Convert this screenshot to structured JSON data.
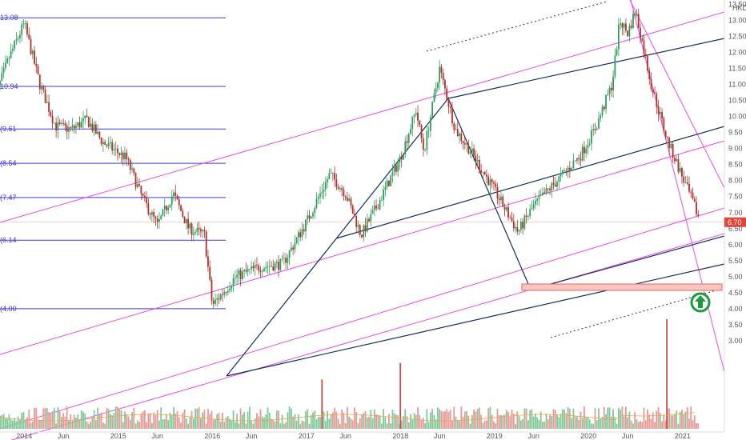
{
  "chart_data": {
    "type": "candlestick",
    "currency_label": "HKD",
    "y_ticks": [
      "13.50",
      "13.00",
      "12.50",
      "12.00",
      "11.50",
      "11.00",
      "10.50",
      "10.00",
      "9.50",
      "9.00",
      "8.50",
      "8.00",
      "7.50",
      "7.00",
      "6.50",
      "6.00",
      "5.50",
      "5.00",
      "4.50",
      "4.00",
      "3.50",
      "3.00"
    ],
    "x_ticks": [
      "2014",
      "Jun",
      "2015",
      "Jun",
      "2016",
      "Jun",
      "2017",
      "Jun",
      "2018",
      "Jun",
      "2019",
      "Jun",
      "2020",
      "Jun",
      "2021"
    ],
    "last_price_label": "6.70",
    "last_price": 6.7,
    "fib_levels": [
      {
        "label": "13.08",
        "value": 13.08
      },
      {
        "label": "10.94",
        "value": 10.94
      },
      {
        "label": "(9.61",
        "value": 9.61
      },
      {
        "label": "(8.54",
        "value": 8.54
      },
      {
        "label": "(7.47",
        "value": 7.47
      },
      {
        "label": "(6.14",
        "value": 6.14
      },
      {
        "label": "(4.00",
        "value": 4.0
      }
    ],
    "price_path": [
      [
        "2013-09",
        10.4
      ],
      [
        "2013-11",
        11.8
      ],
      [
        "2014-01",
        12.9
      ],
      [
        "2014-03",
        11.0
      ],
      [
        "2014-05",
        9.7
      ],
      [
        "2014-07",
        9.6
      ],
      [
        "2014-09",
        9.9
      ],
      [
        "2014-11",
        9.2
      ],
      [
        "2015-02",
        8.7
      ],
      [
        "2015-04",
        7.5
      ],
      [
        "2015-06",
        6.6
      ],
      [
        "2015-08",
        7.6
      ],
      [
        "2015-10",
        6.5
      ],
      [
        "2015-12",
        6.3
      ],
      [
        "2016-01",
        4.1
      ],
      [
        "2016-04",
        5.0
      ],
      [
        "2016-07",
        5.3
      ],
      [
        "2016-10",
        5.4
      ],
      [
        "2017-01",
        6.7
      ],
      [
        "2017-04",
        8.2
      ],
      [
        "2017-06",
        7.6
      ],
      [
        "2017-08",
        6.3
      ],
      [
        "2017-10",
        7.2
      ],
      [
        "2018-01",
        8.7
      ],
      [
        "2018-03",
        10.2
      ],
      [
        "2018-04",
        8.9
      ],
      [
        "2018-06",
        11.5
      ],
      [
        "2018-08",
        9.6
      ],
      [
        "2018-10",
        8.9
      ],
      [
        "2019-01",
        7.7
      ],
      [
        "2019-04",
        6.4
      ],
      [
        "2019-06",
        7.2
      ],
      [
        "2019-09",
        8.0
      ],
      [
        "2019-12",
        8.8
      ],
      [
        "2020-02",
        9.7
      ],
      [
        "2020-04",
        11.0
      ],
      [
        "2020-05",
        13.0
      ],
      [
        "2020-06",
        12.6
      ],
      [
        "2020-07",
        13.3
      ],
      [
        "2020-09",
        11.0
      ],
      [
        "2020-11",
        9.3
      ],
      [
        "2021-01",
        8.1
      ],
      [
        "2021-03",
        6.9
      ]
    ],
    "volume_spikes": [
      {
        "date": "2017-03",
        "level": 0.45
      },
      {
        "date": "2018-01",
        "level": 0.6
      },
      {
        "date": "2020-11",
        "level": 1.0
      }
    ],
    "annotation": "up-arrow-circle"
  }
}
